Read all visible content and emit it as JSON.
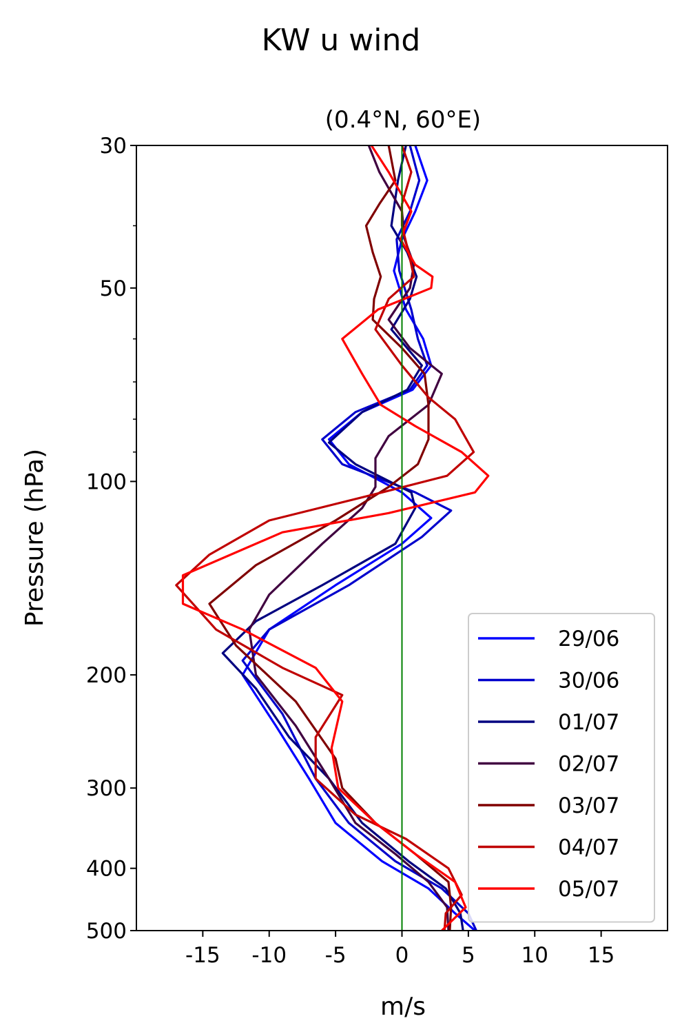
{
  "chart_data": {
    "type": "line",
    "suptitle": "KW u wind",
    "title": "(0.4°N, 60°E)",
    "xlabel": "m/s",
    "ylabel": "Pressure (hPa)",
    "xlim": [
      -20,
      20
    ],
    "ylim": [
      500,
      30
    ],
    "yscale": "log",
    "xticks": [
      -15,
      -10,
      -5,
      0,
      5,
      10,
      15
    ],
    "xtick_labels": [
      "-15",
      "-10",
      "-5",
      "0",
      "5",
      "10",
      "15"
    ],
    "yticks": [
      30,
      50,
      100,
      200,
      300,
      400,
      500
    ],
    "ytick_labels": [
      "30",
      "50",
      "100",
      "200",
      "300",
      "400",
      "500"
    ],
    "reference_line": {
      "x": 0,
      "color": "#008000"
    },
    "legend_position": "lower-right",
    "series": [
      {
        "name": "29/06",
        "color": "#0000ff",
        "points": [
          [
            1,
            30
          ],
          [
            1.9,
            34
          ],
          [
            1,
            38
          ],
          [
            0,
            42
          ],
          [
            -0.6,
            47
          ],
          [
            0.3,
            54
          ],
          [
            1.6,
            60
          ],
          [
            2.2,
            66
          ],
          [
            0.8,
            72
          ],
          [
            -3,
            78
          ],
          [
            -5.5,
            86
          ],
          [
            -4,
            94
          ],
          [
            0,
            104
          ],
          [
            2.2,
            114
          ],
          [
            0,
            125
          ],
          [
            -5,
            145
          ],
          [
            -10,
            170
          ],
          [
            -12,
            200
          ],
          [
            -9.5,
            240
          ],
          [
            -7,
            290
          ],
          [
            -5,
            340
          ],
          [
            -1.5,
            390
          ],
          [
            2,
            430
          ],
          [
            4,
            470
          ],
          [
            5.5,
            500
          ]
        ]
      },
      {
        "name": "30/06",
        "color": "#0000cc",
        "points": [
          [
            0.6,
            30
          ],
          [
            1.3,
            34
          ],
          [
            0.6,
            38
          ],
          [
            -0.4,
            42
          ],
          [
            -0.2,
            47
          ],
          [
            0.7,
            54
          ],
          [
            1.2,
            60
          ],
          [
            1.9,
            66
          ],
          [
            0.6,
            72
          ],
          [
            -3.5,
            78
          ],
          [
            -6,
            86
          ],
          [
            -4.5,
            94
          ],
          [
            1,
            104
          ],
          [
            3.7,
            111
          ],
          [
            1.5,
            122
          ],
          [
            -4,
            145
          ],
          [
            -10,
            170
          ],
          [
            -12,
            190
          ],
          [
            -9,
            230
          ],
          [
            -6.5,
            290
          ],
          [
            -4,
            340
          ],
          [
            -0.5,
            390
          ],
          [
            3,
            430
          ],
          [
            5,
            470
          ],
          [
            5.6,
            500
          ]
        ]
      },
      {
        "name": "01/07",
        "color": "#000080",
        "points": [
          [
            0.3,
            30
          ],
          [
            -0.3,
            34
          ],
          [
            -0.8,
            40
          ],
          [
            0.4,
            44
          ],
          [
            1.1,
            48
          ],
          [
            0.6,
            52
          ],
          [
            -0.8,
            58
          ],
          [
            1.5,
            66
          ],
          [
            0.4,
            72
          ],
          [
            -3,
            78
          ],
          [
            -5.5,
            87
          ],
          [
            -3.5,
            94
          ],
          [
            0.7,
            104
          ],
          [
            1,
            110
          ],
          [
            -0.5,
            125
          ],
          [
            -6,
            145
          ],
          [
            -11,
            165
          ],
          [
            -13.5,
            185
          ],
          [
            -11,
            210
          ],
          [
            -8.5,
            250
          ],
          [
            -5.5,
            290
          ],
          [
            -3,
            340
          ],
          [
            0.5,
            390
          ],
          [
            3.3,
            430
          ],
          [
            4.4,
            470
          ],
          [
            4.6,
            500
          ]
        ]
      },
      {
        "name": "02/07",
        "color": "#400040",
        "points": [
          [
            -2.5,
            30
          ],
          [
            -1.7,
            33
          ],
          [
            0,
            38
          ],
          [
            0.2,
            42
          ],
          [
            0.9,
            46
          ],
          [
            0.6,
            50
          ],
          [
            -1,
            56
          ],
          [
            0.6,
            62
          ],
          [
            3,
            68
          ],
          [
            2,
            76
          ],
          [
            -1,
            85
          ],
          [
            -2,
            92
          ],
          [
            -2,
            102
          ],
          [
            -3,
            110
          ],
          [
            -6,
            125
          ],
          [
            -10,
            150
          ],
          [
            -11.5,
            170
          ],
          [
            -11,
            200
          ],
          [
            -8,
            240
          ],
          [
            -5.5,
            290
          ],
          [
            -3.5,
            340
          ],
          [
            -0.5,
            380
          ],
          [
            2,
            420
          ],
          [
            3.4,
            460
          ],
          [
            3.5,
            500
          ]
        ]
      },
      {
        "name": "03/07",
        "color": "#800000",
        "points": [
          [
            -1,
            30
          ],
          [
            -0.5,
            34
          ],
          [
            -1.7,
            37
          ],
          [
            -2.7,
            40
          ],
          [
            -2.2,
            44
          ],
          [
            -1.6,
            48
          ],
          [
            -2.1,
            52
          ],
          [
            -2.2,
            56
          ],
          [
            0,
            62
          ],
          [
            1.7,
            68
          ],
          [
            2,
            76
          ],
          [
            2,
            86
          ],
          [
            1.2,
            94
          ],
          [
            -1,
            102
          ],
          [
            -5,
            115
          ],
          [
            -11,
            135
          ],
          [
            -14.5,
            155
          ],
          [
            -12.5,
            180
          ],
          [
            -8,
            220
          ],
          [
            -5,
            270
          ],
          [
            -4.5,
            300
          ],
          [
            -2,
            340
          ],
          [
            1,
            380
          ],
          [
            3.5,
            420
          ],
          [
            3.7,
            460
          ],
          [
            3.6,
            500
          ]
        ]
      },
      {
        "name": "04/07",
        "color": "#c00000",
        "points": [
          [
            0,
            30
          ],
          [
            0.7,
            33
          ],
          [
            0,
            37
          ],
          [
            0,
            40
          ],
          [
            0.5,
            44
          ],
          [
            0.9,
            48
          ],
          [
            -1,
            52
          ],
          [
            -2,
            58
          ],
          [
            0,
            66
          ],
          [
            2,
            74
          ],
          [
            4,
            80
          ],
          [
            5.4,
            90
          ],
          [
            3.4,
            98
          ],
          [
            -1.5,
            104
          ],
          [
            -10,
            115
          ],
          [
            -14.5,
            130
          ],
          [
            -17,
            145
          ],
          [
            -14,
            170
          ],
          [
            -9,
            195
          ],
          [
            -4.5,
            215
          ],
          [
            -6.5,
            250
          ],
          [
            -6.5,
            290
          ],
          [
            -3.5,
            330
          ],
          [
            0.3,
            360
          ],
          [
            3.5,
            400
          ],
          [
            4.5,
            440
          ],
          [
            3.3,
            470
          ],
          [
            3.2,
            500
          ]
        ]
      },
      {
        "name": "05/07",
        "color": "#ff0000",
        "points": [
          [
            -2.3,
            30
          ],
          [
            -1,
            33
          ],
          [
            0.7,
            38
          ],
          [
            -0.1,
            42
          ],
          [
            1,
            46
          ],
          [
            2.3,
            48
          ],
          [
            2.2,
            50
          ],
          [
            -1.8,
            54
          ],
          [
            -4.5,
            60
          ],
          [
            -3,
            68
          ],
          [
            -1.6,
            76
          ],
          [
            1,
            82
          ],
          [
            4.5,
            90
          ],
          [
            6.5,
            98
          ],
          [
            5.5,
            104
          ],
          [
            -1,
            112
          ],
          [
            -9,
            120
          ],
          [
            -16.5,
            140
          ],
          [
            -16.5,
            155
          ],
          [
            -12,
            170
          ],
          [
            -6.5,
            195
          ],
          [
            -4.5,
            220
          ],
          [
            -5.3,
            260
          ],
          [
            -4.8,
            300
          ],
          [
            -2,
            340
          ],
          [
            1,
            380
          ],
          [
            4,
            420
          ],
          [
            4.8,
            460
          ],
          [
            3,
            500
          ]
        ]
      }
    ]
  }
}
